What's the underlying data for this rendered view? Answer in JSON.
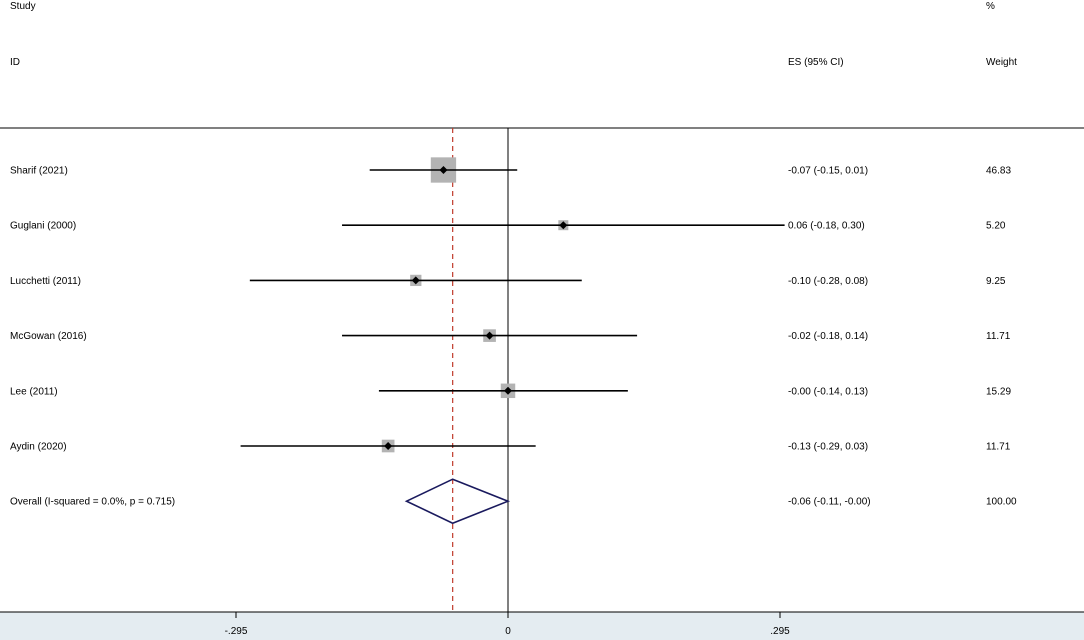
{
  "header": {
    "study": "Study",
    "id": "ID",
    "es": "ES (95% CI)",
    "pct": "%",
    "weight": "Weight"
  },
  "colors": {
    "line": "#000000",
    "box": "#b3b3b3",
    "diamond": "#1a1a5e",
    "ref": "#c0392b",
    "axis_band": "#e4ecf1"
  },
  "chart_data": {
    "type": "forest",
    "xlim": [
      -0.55,
      0.62
    ],
    "ticks": [
      {
        "value": -0.295,
        "label": "-.295"
      },
      {
        "value": 0,
        "label": "0"
      },
      {
        "value": 0.295,
        "label": ".295"
      }
    ],
    "null_line": 0,
    "overall_line": -0.06,
    "studies": [
      {
        "label": "Sharif (2021)",
        "es": -0.07,
        "lo": -0.15,
        "hi": 0.01,
        "text": "-0.07 (-0.15, 0.01)",
        "weight": "46.83"
      },
      {
        "label": "Guglani (2000)",
        "es": 0.06,
        "lo": -0.18,
        "hi": 0.3,
        "text": "0.06 (-0.18, 0.30)",
        "weight": "5.20"
      },
      {
        "label": "Lucchetti (2011)",
        "es": -0.1,
        "lo": -0.28,
        "hi": 0.08,
        "text": "-0.10 (-0.28, 0.08)",
        "weight": "9.25"
      },
      {
        "label": "McGowan (2016)",
        "es": -0.02,
        "lo": -0.18,
        "hi": 0.14,
        "text": "-0.02 (-0.18, 0.14)",
        "weight": "11.71"
      },
      {
        "label": "Lee (2011)",
        "es": 0.0,
        "lo": -0.14,
        "hi": 0.13,
        "text": "-0.00 (-0.14, 0.13)",
        "weight": "15.29"
      },
      {
        "label": "Aydin (2020)",
        "es": -0.13,
        "lo": -0.29,
        "hi": 0.03,
        "text": "-0.13 (-0.29, 0.03)",
        "weight": "11.71"
      }
    ],
    "overall": {
      "label": "Overall  (I-squared = 0.0%, p = 0.715)",
      "es": -0.06,
      "lo": -0.11,
      "hi": 0.0,
      "text": "-0.06 (-0.11, -0.00)",
      "weight": "100.00"
    }
  }
}
